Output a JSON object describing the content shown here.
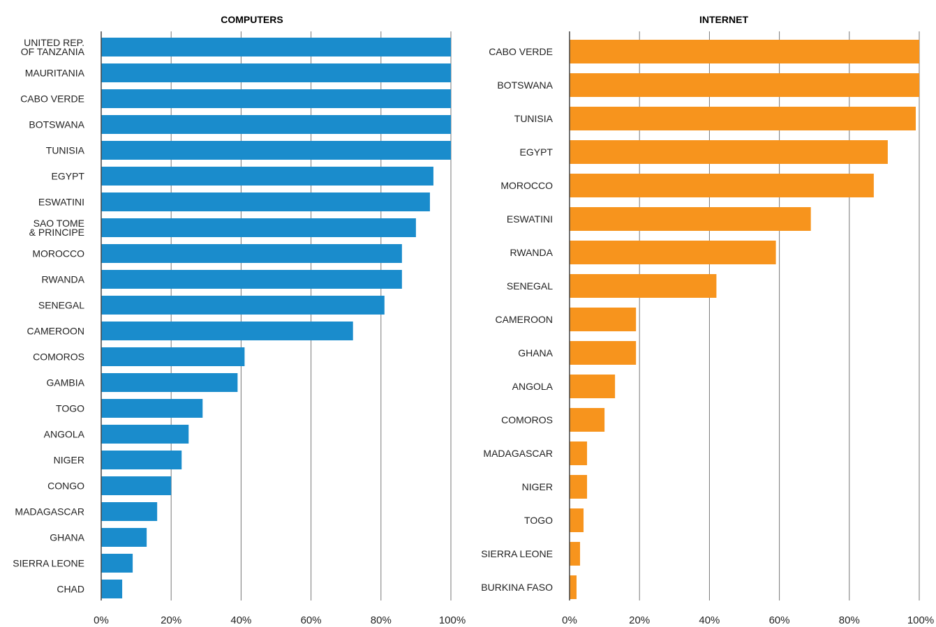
{
  "chart_data": [
    {
      "type": "bar",
      "orientation": "horizontal",
      "title": "COMPUTERS",
      "xlabel": "",
      "ylabel": "",
      "xlim": [
        0,
        100
      ],
      "x_ticks": [
        "0%",
        "20%",
        "40%",
        "60%",
        "80%",
        "100%"
      ],
      "grid": true,
      "color": "#1a8ccc",
      "categories": [
        "UNITED REP.\nOF TANZANIA",
        "MAURITANIA",
        "CABO VERDE",
        "BOTSWANA",
        "TUNISIA",
        "EGYPT",
        "ESWATINI",
        "SAO TOME\n& PRINCIPE",
        "MOROCCO",
        "RWANDA",
        "SENEGAL",
        "CAMEROON",
        "COMOROS",
        "GAMBIA",
        "TOGO",
        "ANGOLA",
        "NIGER",
        "CONGO",
        "MADAGASCAR",
        "GHANA",
        "SIERRA LEONE",
        "CHAD"
      ],
      "values": [
        100,
        100,
        100,
        100,
        100,
        95,
        94,
        90,
        86,
        86,
        81,
        72,
        41,
        39,
        29,
        25,
        23,
        20,
        16,
        13,
        9,
        6
      ]
    },
    {
      "type": "bar",
      "orientation": "horizontal",
      "title": "INTERNET",
      "xlabel": "",
      "ylabel": "",
      "xlim": [
        0,
        100
      ],
      "x_ticks": [
        "0%",
        "20%",
        "40%",
        "60%",
        "80%",
        "100%"
      ],
      "grid": true,
      "color": "#f7941d",
      "categories": [
        "CABO VERDE",
        "BOTSWANA",
        "TUNISIA",
        "EGYPT",
        "MOROCCO",
        "ESWATINI",
        "RWANDA",
        "SENEGAL",
        "CAMEROON",
        "GHANA",
        "ANGOLA",
        "COMOROS",
        "MADAGASCAR",
        "NIGER",
        "TOGO",
        "SIERRA LEONE",
        "BURKINA FASO"
      ],
      "values": [
        100,
        100,
        99,
        91,
        87,
        69,
        59,
        42,
        19,
        19,
        13,
        10,
        5,
        5,
        4,
        3,
        2
      ]
    }
  ]
}
